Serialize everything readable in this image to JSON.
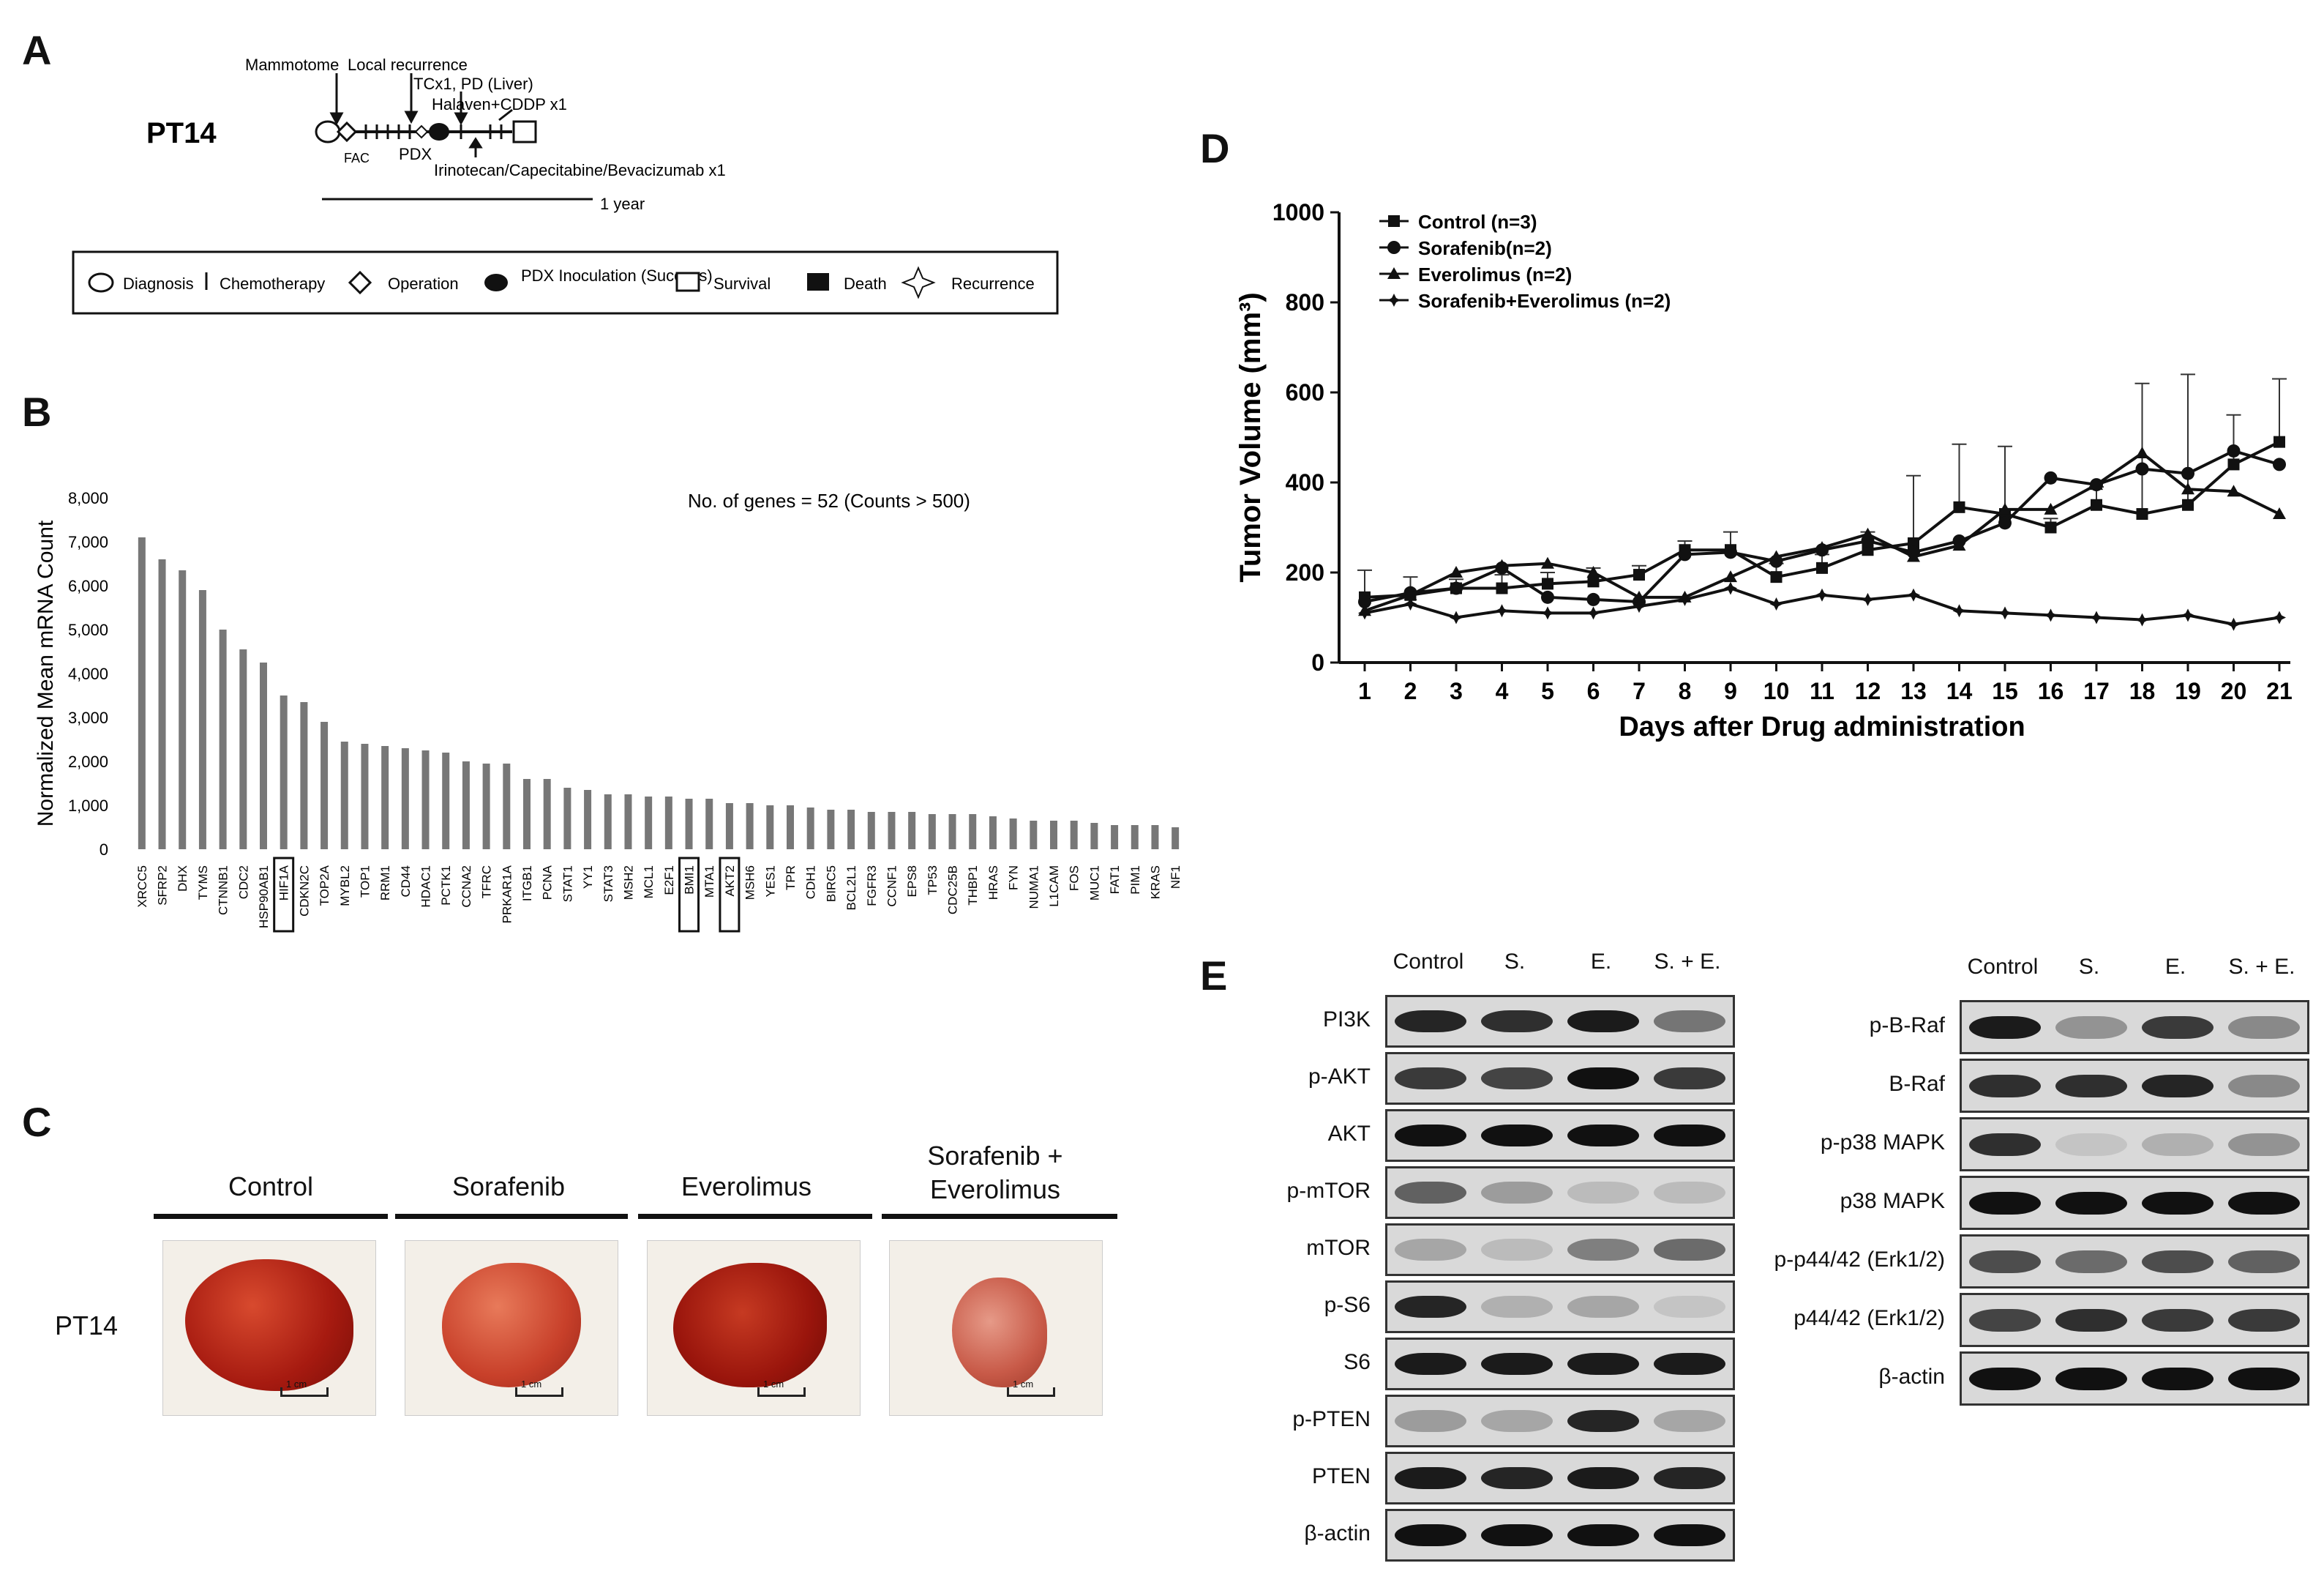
{
  "panels": {
    "a": "A",
    "b": "B",
    "c": "C",
    "d": "D",
    "e": "E"
  },
  "panel_a": {
    "patient": "PT14",
    "events": [
      "Mammotome",
      "Local recurrence",
      "TCx1, PD (Liver)",
      "Halaven+CDDP x1",
      "Irinotecan/Capecitabine/Bevacizumab x1"
    ],
    "timeline_labels": [
      "FAC",
      "PDX"
    ],
    "scale": "1 year",
    "legend": [
      {
        "symbol": "oval",
        "label": "Diagnosis"
      },
      {
        "symbol": "tick",
        "label": "Chemotherapy"
      },
      {
        "symbol": "diamond",
        "label": "Operation"
      },
      {
        "symbol": "filled-oval",
        "label": "PDX Inoculation (Success)"
      },
      {
        "symbol": "open-square",
        "label": "Survival"
      },
      {
        "symbol": "filled-square",
        "label": "Death"
      },
      {
        "symbol": "star",
        "label": "Recurrence"
      }
    ]
  },
  "chart_data": [
    {
      "type": "bar",
      "title": "No. of genes = 52 (Counts > 500)",
      "xlabel": "",
      "ylabel": "Normalized Mean mRNA Count",
      "ylim": [
        0,
        8000
      ],
      "yticks": [
        "0",
        "1,000",
        "2,000",
        "3,000",
        "4,000",
        "5,000",
        "6,000",
        "7,000",
        "8,000"
      ],
      "categories": [
        "XRCC5",
        "SFRP2",
        "DHX",
        "TYMS",
        "CTNNB1",
        "CDC2",
        "HSP90AB1",
        "HIF1A",
        "CDKN2C",
        "TOP2A",
        "MYBL2",
        "TOP1",
        "RRM1",
        "CD44",
        "HDAC1",
        "PCTK1",
        "CCNA2",
        "TFRC",
        "PRKAR1A",
        "ITGB1",
        "PCNA",
        "STAT1",
        "YY1",
        "STAT3",
        "MSH2",
        "MCL1",
        "E2F1",
        "BMI1",
        "MTA1",
        "AKT2",
        "MSH6",
        "YES1",
        "TPR",
        "CDH1",
        "BIRC5",
        "BCL2L1",
        "FGFR3",
        "CCNF1",
        "EPS8",
        "TP53",
        "CDC25B",
        "THBP1",
        "HRAS",
        "FYN",
        "NUMA1",
        "L1CAM",
        "FOS",
        "MUC1",
        "FAT1",
        "PIM1",
        "KRAS",
        "NF1"
      ],
      "values": [
        7100,
        6600,
        6350,
        5900,
        5000,
        4550,
        4250,
        3500,
        3350,
        2900,
        2450,
        2400,
        2350,
        2300,
        2250,
        2200,
        2000,
        1950,
        1950,
        1600,
        1600,
        1400,
        1350,
        1250,
        1250,
        1200,
        1200,
        1150,
        1150,
        1050,
        1050,
        1000,
        1000,
        950,
        900,
        900,
        850,
        850,
        850,
        800,
        800,
        800,
        750,
        700,
        650,
        650,
        650,
        600,
        550,
        550,
        550,
        500
      ],
      "boxed": [
        "HIF1A",
        "BMI1",
        "AKT2"
      ]
    },
    {
      "type": "line",
      "title": "",
      "xlabel": "Days after Drug administration",
      "ylabel": "Tumor Volume (mm³)",
      "ylim": [
        0,
        1000
      ],
      "yticks": [
        "0",
        "200",
        "400",
        "600",
        "800",
        "1000"
      ],
      "x": [
        1,
        2,
        3,
        4,
        5,
        6,
        7,
        8,
        9,
        10,
        11,
        12,
        13,
        14,
        15,
        16,
        17,
        18,
        19,
        20,
        21
      ],
      "series": [
        {
          "name": "Control (n=3)",
          "marker": "square",
          "values": [
            145,
            150,
            165,
            165,
            175,
            180,
            195,
            250,
            250,
            190,
            210,
            250,
            265,
            345,
            330,
            300,
            350,
            330,
            350,
            440,
            490
          ],
          "errors": [
            60,
            40,
            20,
            30,
            25,
            30,
            20,
            20,
            40,
            30,
            30,
            40,
            150,
            140,
            150,
            20,
            40,
            290,
            290,
            110,
            140
          ]
        },
        {
          "name": "Sorafenib(n=2)",
          "marker": "circle",
          "values": [
            135,
            155,
            165,
            210,
            145,
            140,
            135,
            240,
            245,
            225,
            250,
            270,
            245,
            270,
            310,
            410,
            395,
            430,
            420,
            470,
            440
          ]
        },
        {
          "name": "Everolimus (n=2)",
          "marker": "triangle",
          "values": [
            115,
            150,
            200,
            215,
            220,
            200,
            145,
            145,
            190,
            235,
            255,
            285,
            235,
            260,
            340,
            340,
            395,
            465,
            385,
            380,
            330
          ]
        },
        {
          "name": "Sorafenib+Everolimus (n=2)",
          "marker": "star",
          "values": [
            110,
            130,
            100,
            115,
            110,
            110,
            125,
            140,
            165,
            130,
            150,
            140,
            150,
            115,
            110,
            105,
            100,
            95,
            105,
            85,
            100
          ]
        }
      ]
    }
  ],
  "panel_c": {
    "patient": "PT14",
    "groups": [
      "Control",
      "Sorafenib",
      "Everolimus",
      "Sorafenib + Everolimus"
    ],
    "scale_bar": "1 cm"
  },
  "panel_e": {
    "left": {
      "columns": [
        "Control",
        "S.",
        "E.",
        "S. + E."
      ],
      "rows": [
        {
          "label": "PI3K",
          "intensities": [
            0.9,
            0.85,
            0.95,
            0.5
          ]
        },
        {
          "label": "p-AKT",
          "intensities": [
            0.8,
            0.75,
            1.0,
            0.8
          ]
        },
        {
          "label": "AKT",
          "intensities": [
            1.0,
            1.0,
            1.0,
            1.0
          ]
        },
        {
          "label": "p-mTOR",
          "intensities": [
            0.6,
            0.3,
            0.15,
            0.15
          ]
        },
        {
          "label": "mTOR",
          "intensities": [
            0.25,
            0.15,
            0.45,
            0.55
          ]
        },
        {
          "label": "p-S6",
          "intensities": [
            0.9,
            0.2,
            0.25,
            0.1
          ]
        },
        {
          "label": "S6",
          "intensities": [
            0.95,
            0.95,
            0.95,
            0.95
          ]
        },
        {
          "label": "p-PTEN",
          "intensities": [
            0.3,
            0.25,
            0.9,
            0.25
          ]
        },
        {
          "label": "PTEN",
          "intensities": [
            0.95,
            0.9,
            0.95,
            0.9
          ]
        },
        {
          "label": "β-actin",
          "intensities": [
            1.0,
            1.0,
            1.0,
            1.0
          ]
        }
      ]
    },
    "right": {
      "columns": [
        "Control",
        "S.",
        "E.",
        "S. + E."
      ],
      "rows": [
        {
          "label": "p-B-Raf",
          "intensities": [
            0.95,
            0.35,
            0.8,
            0.4
          ]
        },
        {
          "label": "B-Raf",
          "intensities": [
            0.85,
            0.85,
            0.9,
            0.4
          ]
        },
        {
          "label": "p-p38 MAPK",
          "intensities": [
            0.85,
            0.1,
            0.2,
            0.35
          ]
        },
        {
          "label": "p38 MAPK",
          "intensities": [
            1.0,
            1.0,
            1.0,
            1.0
          ]
        },
        {
          "label": "p-p44/42 (Erk1/2)",
          "intensities": [
            0.7,
            0.55,
            0.7,
            0.6
          ]
        },
        {
          "label": "p44/42 (Erk1/2)",
          "intensities": [
            0.75,
            0.85,
            0.8,
            0.8
          ]
        },
        {
          "label": "β-actin",
          "intensities": [
            1.0,
            1.0,
            1.0,
            1.0
          ]
        }
      ]
    }
  }
}
